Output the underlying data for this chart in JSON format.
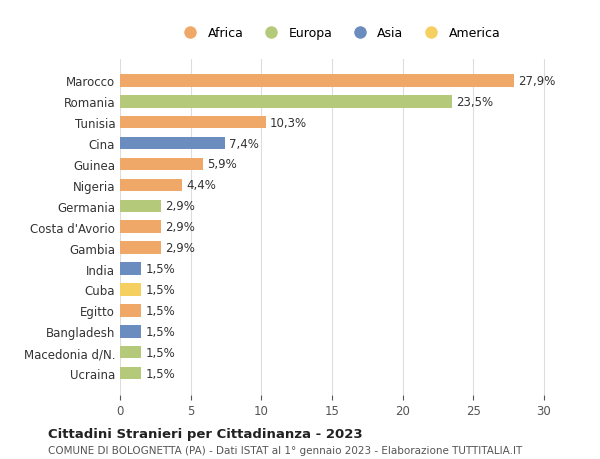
{
  "categories": [
    "Ucraina",
    "Macedonia d/N.",
    "Bangladesh",
    "Egitto",
    "Cuba",
    "India",
    "Gambia",
    "Costa d'Avorio",
    "Germania",
    "Nigeria",
    "Guinea",
    "Cina",
    "Tunisia",
    "Romania",
    "Marocco"
  ],
  "values": [
    1.5,
    1.5,
    1.5,
    1.5,
    1.5,
    1.5,
    2.9,
    2.9,
    2.9,
    4.4,
    5.9,
    7.4,
    10.3,
    23.5,
    27.9
  ],
  "labels": [
    "1,5%",
    "1,5%",
    "1,5%",
    "1,5%",
    "1,5%",
    "1,5%",
    "2,9%",
    "2,9%",
    "2,9%",
    "4,4%",
    "5,9%",
    "7,4%",
    "10,3%",
    "23,5%",
    "27,9%"
  ],
  "continents": [
    "Europa",
    "Europa",
    "Asia",
    "Africa",
    "America",
    "Asia",
    "Africa",
    "Africa",
    "Europa",
    "Africa",
    "Africa",
    "Asia",
    "Africa",
    "Europa",
    "Africa"
  ],
  "colors": {
    "Africa": "#F0A868",
    "Europa": "#B5C97A",
    "Asia": "#6B8CBF",
    "America": "#F5D060"
  },
  "legend_order": [
    "Africa",
    "Europa",
    "Asia",
    "America"
  ],
  "title": "Cittadini Stranieri per Cittadinanza - 2023",
  "subtitle": "COMUNE DI BOLOGNETTA (PA) - Dati ISTAT al 1° gennaio 2023 - Elaborazione TUTTITALIA.IT",
  "xlim": [
    0,
    31
  ],
  "xticks": [
    0,
    5,
    10,
    15,
    20,
    25,
    30
  ],
  "background_color": "#ffffff",
  "bar_height": 0.6,
  "grid_color": "#dddddd",
  "label_fontsize": 8.5,
  "axis_label_color": "#555555"
}
